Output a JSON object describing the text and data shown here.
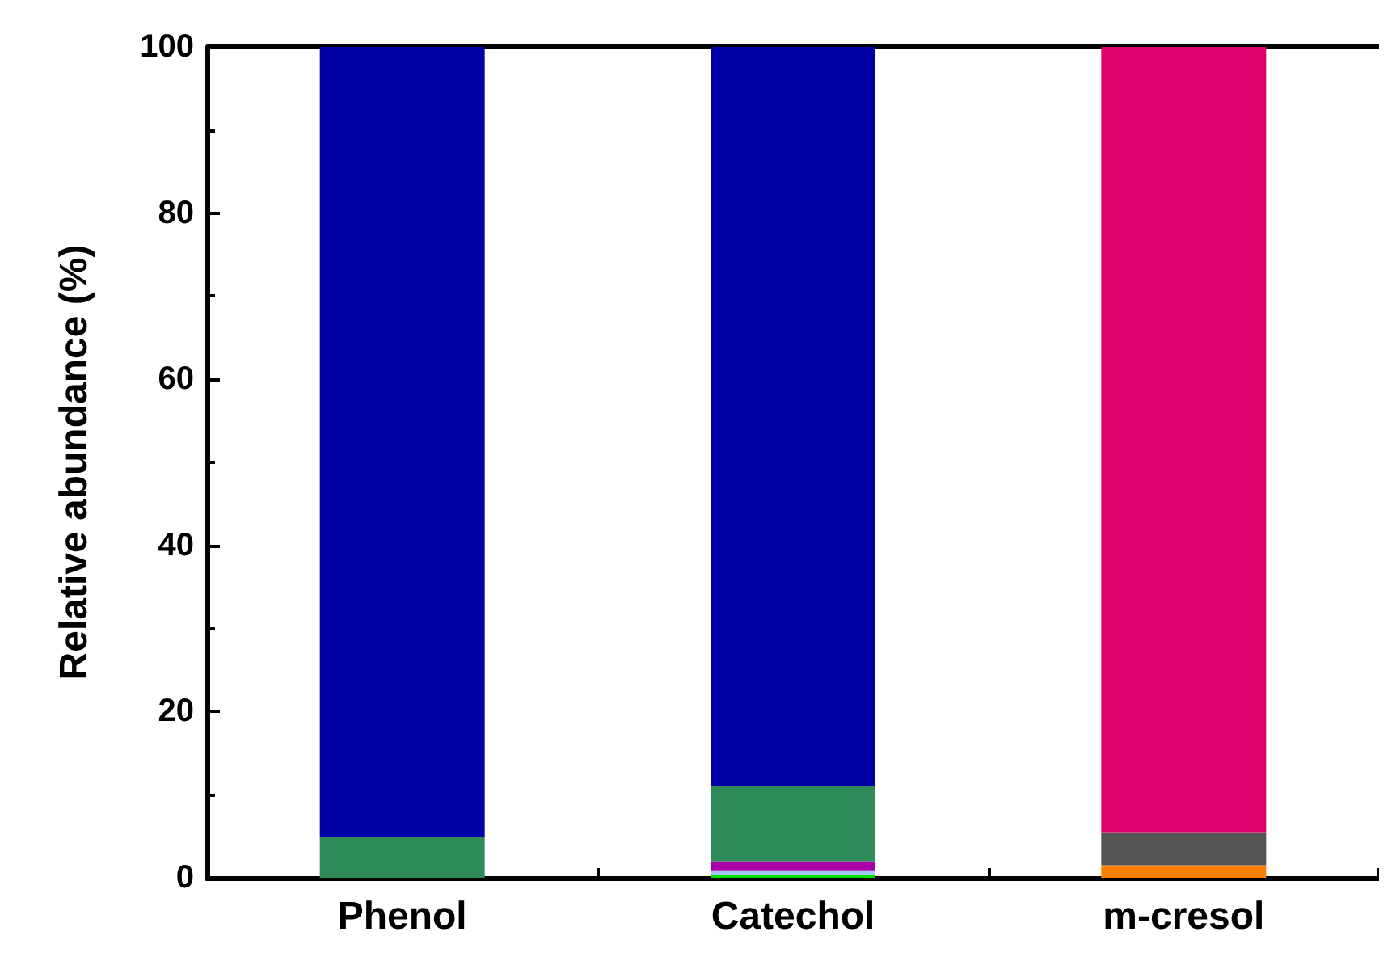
{
  "chart_data": {
    "type": "bar",
    "stacked": true,
    "ylabel": "Relative abundance (%)",
    "categories": [
      "Phenol",
      "Catechol",
      "m-cresol"
    ],
    "ylim": [
      0,
      100
    ],
    "yticks": [
      0,
      20,
      40,
      60,
      80,
      100
    ],
    "grid": false,
    "series": [
      {
        "color": "#00e000",
        "values": [
          null,
          0.3,
          null
        ]
      },
      {
        "color": "#a0c8f0",
        "values": [
          null,
          0.6,
          null
        ]
      },
      {
        "color": "#a800a8",
        "values": [
          null,
          1.1,
          null
        ]
      },
      {
        "color": "#ff8000",
        "values": [
          null,
          null,
          1.5
        ]
      },
      {
        "color": "#555555",
        "values": [
          null,
          null,
          4.0
        ]
      },
      {
        "color": "#2e8b57",
        "values": [
          4.9,
          9.1,
          null
        ]
      },
      {
        "color": "#0000a8",
        "values": [
          95.1,
          88.9,
          null
        ]
      },
      {
        "color": "#e0006e",
        "values": [
          null,
          null,
          94.5
        ]
      }
    ]
  }
}
